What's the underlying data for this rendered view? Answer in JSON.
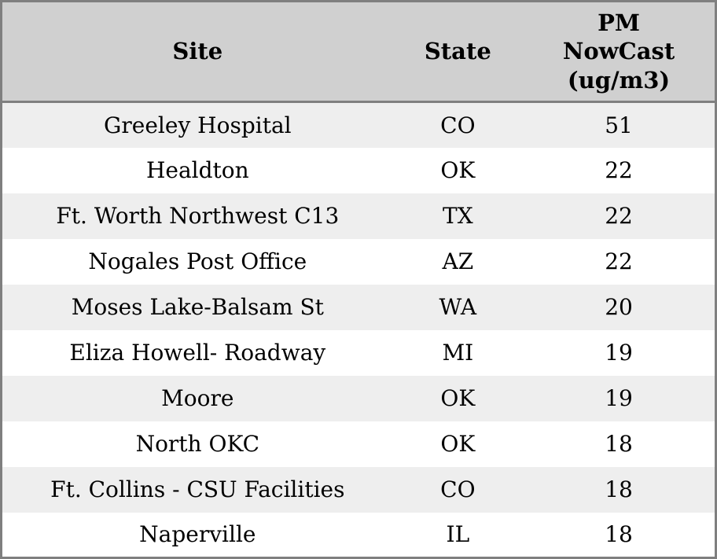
{
  "table": {
    "columns": [
      {
        "id": "site",
        "label": "Site"
      },
      {
        "id": "state",
        "label": "State"
      },
      {
        "id": "pm",
        "label": "PM\nNowCast\n(ug/m3)"
      }
    ],
    "rows": [
      {
        "site": "Greeley Hospital",
        "state": "CO",
        "pm": "51"
      },
      {
        "site": "Healdton",
        "state": "OK",
        "pm": "22"
      },
      {
        "site": "Ft. Worth Northwest C13",
        "state": "TX",
        "pm": "22"
      },
      {
        "site": "Nogales Post Office",
        "state": "AZ",
        "pm": "22"
      },
      {
        "site": "Moses Lake-Balsam St",
        "state": "WA",
        "pm": "20"
      },
      {
        "site": "Eliza Howell- Roadway",
        "state": "MI",
        "pm": "19"
      },
      {
        "site": "Moore",
        "state": "OK",
        "pm": "19"
      },
      {
        "site": "North OKC",
        "state": "OK",
        "pm": "18"
      },
      {
        "site": "Ft. Collins - CSU Facilities",
        "state": "CO",
        "pm": "18"
      },
      {
        "site": "Naperville",
        "state": "IL",
        "pm": "18"
      }
    ]
  },
  "colors": {
    "header_background": "#d0d0d0",
    "row_stripe": "#eeeeee",
    "row_background": "#ffffff",
    "border": "#7f7f7f",
    "text": "#000000"
  },
  "chart_data": {
    "type": "table",
    "title": "",
    "columns": [
      "Site",
      "State",
      "PM NowCast (ug/m3)"
    ],
    "rows": [
      [
        "Greeley Hospital",
        "CO",
        51
      ],
      [
        "Healdton",
        "OK",
        22
      ],
      [
        "Ft. Worth Northwest C13",
        "TX",
        22
      ],
      [
        "Nogales Post Office",
        "AZ",
        22
      ],
      [
        "Moses Lake-Balsam St",
        "WA",
        20
      ],
      [
        "Eliza Howell- Roadway",
        "MI",
        19
      ],
      [
        "Moore",
        "OK",
        19
      ],
      [
        "North OKC",
        "OK",
        18
      ],
      [
        "Ft. Collins - CSU Facilities",
        "CO",
        18
      ],
      [
        "Naperville",
        "IL",
        18
      ]
    ],
    "layout": {
      "striped_rows": true,
      "header_shaded": true,
      "grid": false
    }
  }
}
